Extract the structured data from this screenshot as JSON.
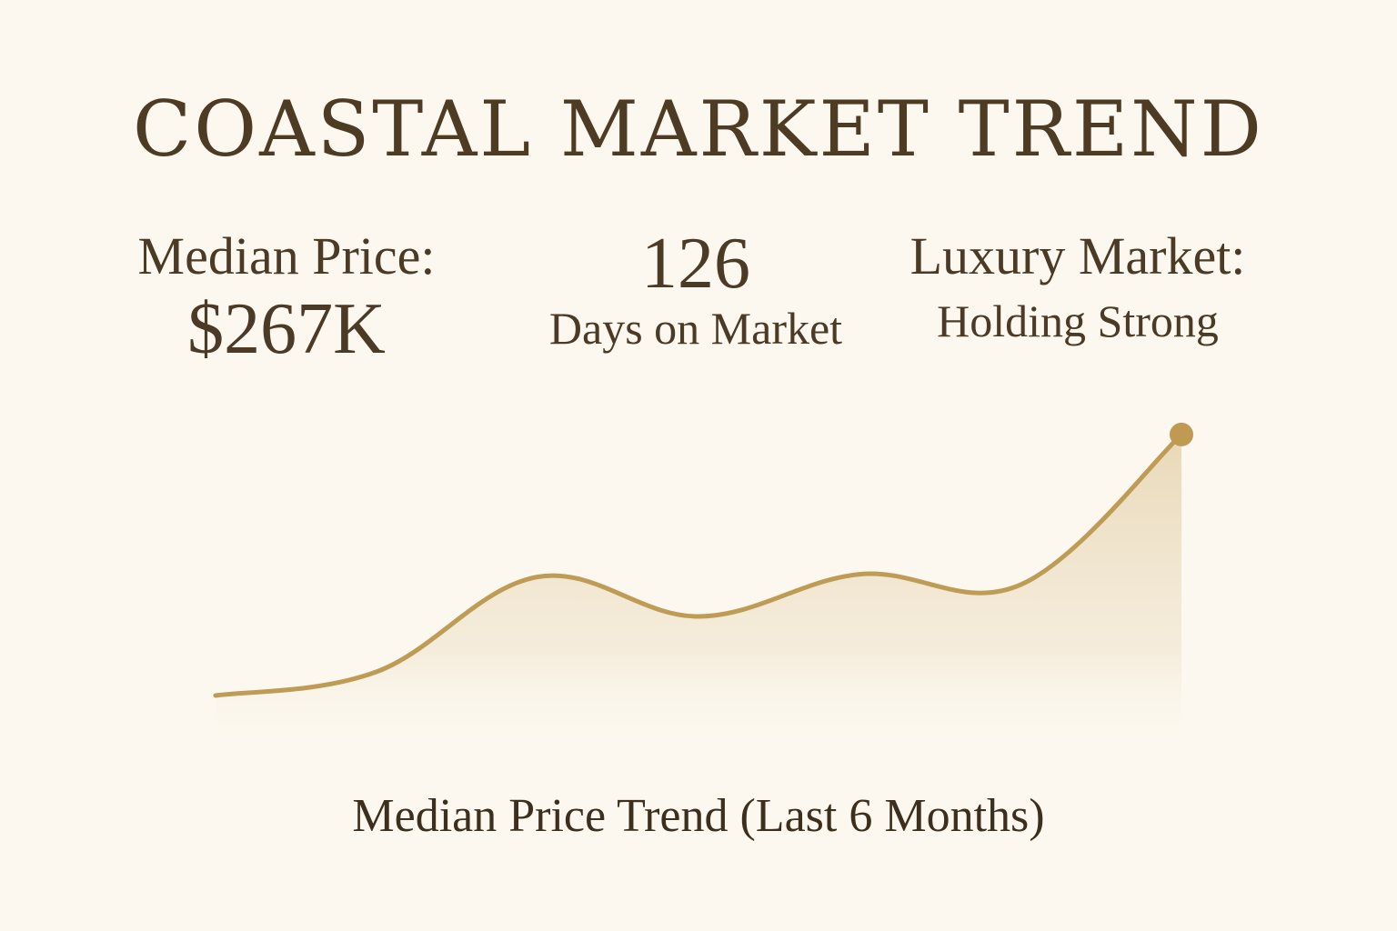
{
  "title": "COASTAL MARKET TREND",
  "stats": {
    "median_price_label": "Median Price:",
    "median_price_value": "$267K",
    "days_value": "126",
    "days_label": "Days on Market",
    "luxury_label": "Luxury Market:",
    "luxury_value": "Holding Strong"
  },
  "colors": {
    "background": "#fcf8ef",
    "line": "#bf9c55",
    "fill_top": "#e9d9b8",
    "text": "#4a3a26"
  },
  "chart_data": {
    "type": "area",
    "title": "Median Price Trend (Last 6 Months)",
    "xlabel": "",
    "ylabel": "",
    "grid": false,
    "legend": "none",
    "x": [
      0,
      1,
      2,
      3,
      4,
      5,
      6
    ],
    "values": [
      0,
      0.09,
      0.45,
      0.3,
      0.46,
      0.42,
      0.99
    ],
    "ylim": [
      0,
      1
    ],
    "end_marker": true
  }
}
